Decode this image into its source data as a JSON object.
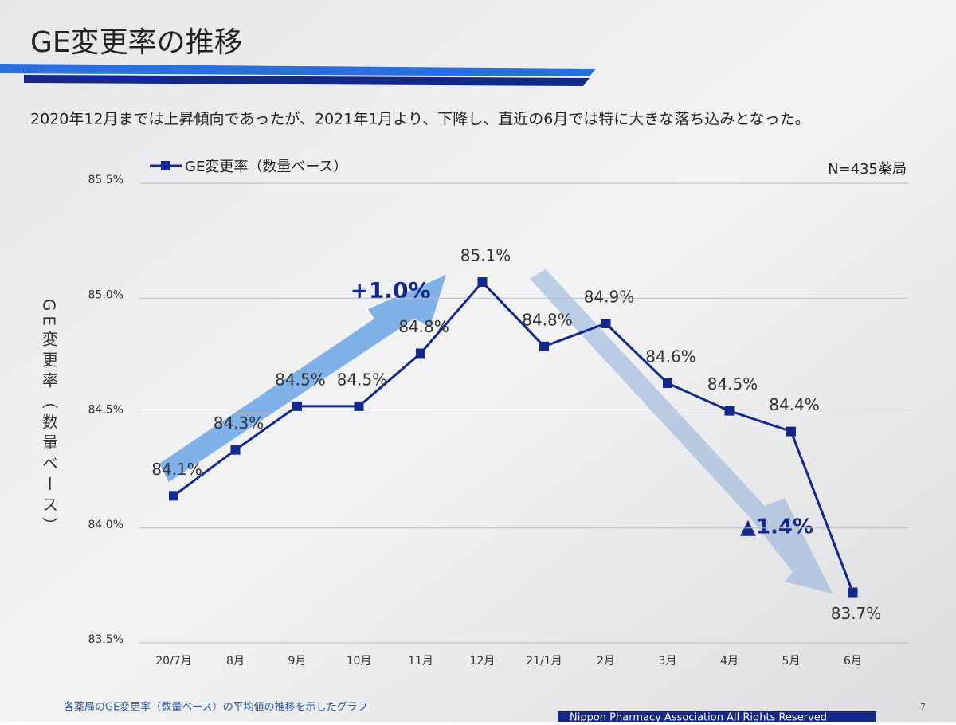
{
  "title": "GE変更率の推移",
  "subtitle": "2020年12月までは上昇傾向であったが、2021年1月より、下降し、直近の6月では特に大きな落ち込みとなった。",
  "chart_data": {
    "type": "line",
    "ylabel": "GE変更率（数量ベース）",
    "note": "N=435薬局",
    "annotations": [
      "+1.0%",
      "▲1.4%"
    ],
    "categories": [
      "20/7月",
      "8月",
      "9月",
      "10月",
      "11月",
      "12月",
      "21/1月",
      "2月",
      "3月",
      "4月",
      "5月",
      "6月"
    ],
    "series": [
      {
        "name": "GE変更率（数量ベース）",
        "color": "#14288c",
        "values": [
          84.14,
          84.34,
          84.53,
          84.53,
          84.76,
          85.07,
          84.79,
          84.89,
          84.63,
          84.51,
          84.42,
          83.72
        ],
        "value_labels": [
          "84.1%",
          "84.3%",
          "84.5%",
          "84.5%",
          "84.8%",
          "85.1%",
          "84.8%",
          "84.9%",
          "84.6%",
          "84.5%",
          "84.4%",
          "83.7%"
        ]
      }
    ],
    "ylim": [
      83.5,
      85.5
    ],
    "yticks": [
      {
        "value": 83.5,
        "label": "83.5%"
      },
      {
        "value": 84.0,
        "label": "84.0%"
      },
      {
        "value": 84.5,
        "label": "84.5%"
      },
      {
        "value": 85.0,
        "label": "85.0%"
      },
      {
        "value": 85.5,
        "label": "85.5%"
      }
    ],
    "grid": true
  },
  "footnote": "各薬局のGE変更率（数量ベース）の平均値の推移を示したグラフ",
  "footer": "Nippon Pharmacy Association All Rights Reserved",
  "page_number": "7"
}
